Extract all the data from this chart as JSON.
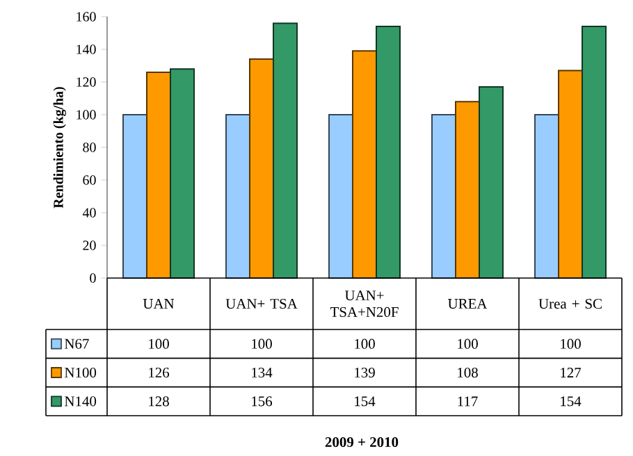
{
  "chart_data": {
    "type": "bar",
    "ylabel": "Rendimiento (kg/ha)",
    "annotations": [
      "2009 + 2010"
    ],
    "categories": [
      "UAN",
      "UAN+ TSA",
      "UAN+ TSA+N20F",
      "UREA",
      "Urea + SC"
    ],
    "series": [
      {
        "name": "N67",
        "color": "#99ccff",
        "values": [
          100,
          100,
          100,
          100,
          100
        ]
      },
      {
        "name": "N100",
        "color": "#ff9900",
        "values": [
          126,
          134,
          139,
          108,
          127
        ]
      },
      {
        "name": "N140",
        "color": "#339966",
        "values": [
          128,
          156,
          154,
          117,
          154
        ]
      }
    ],
    "ylim": [
      0,
      160
    ],
    "yticks": [
      0,
      20,
      40,
      60,
      80,
      100,
      120,
      140,
      160
    ],
    "grid": false,
    "legend": "left",
    "data_labels": true
  }
}
